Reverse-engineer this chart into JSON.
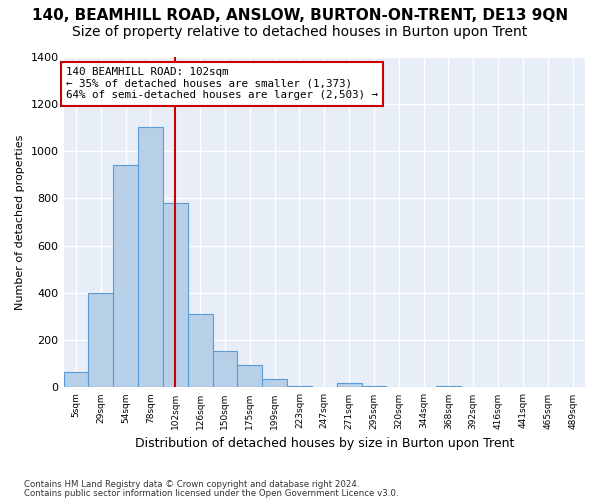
{
  "title": "140, BEAMHILL ROAD, ANSLOW, BURTON-ON-TRENT, DE13 9QN",
  "subtitle": "Size of property relative to detached houses in Burton upon Trent",
  "xlabel": "Distribution of detached houses by size in Burton upon Trent",
  "ylabel": "Number of detached properties",
  "footnote1": "Contains HM Land Registry data © Crown copyright and database right 2024.",
  "footnote2": "Contains public sector information licensed under the Open Government Licence v3.0.",
  "bin_labels": [
    "5sqm",
    "29sqm",
    "54sqm",
    "78sqm",
    "102sqm",
    "126sqm",
    "150sqm",
    "175sqm",
    "199sqm",
    "223sqm",
    "247sqm",
    "271sqm",
    "295sqm",
    "320sqm",
    "344sqm",
    "368sqm",
    "392sqm",
    "416sqm",
    "441sqm",
    "465sqm",
    "489sqm"
  ],
  "bar_values": [
    65,
    400,
    940,
    1100,
    780,
    310,
    155,
    95,
    35,
    8,
    0,
    18,
    5,
    0,
    0,
    5,
    0,
    0,
    0,
    0,
    0
  ],
  "bar_color": "#b8cfe8",
  "bar_edge_color": "#5b9bd5",
  "vline_x": 4,
  "vline_color": "#cc0000",
  "annotation_text": "140 BEAMHILL ROAD: 102sqm\n← 35% of detached houses are smaller (1,373)\n64% of semi-detached houses are larger (2,503) →",
  "annotation_box_color": "#ffffff",
  "annotation_box_edge": "#cc0000",
  "ylim": [
    0,
    1400
  ],
  "yticks": [
    0,
    200,
    400,
    600,
    800,
    1000,
    1200,
    1400
  ],
  "background_color": "#e8eef8",
  "grid_color": "#ffffff",
  "title_fontsize": 11,
  "subtitle_fontsize": 10
}
